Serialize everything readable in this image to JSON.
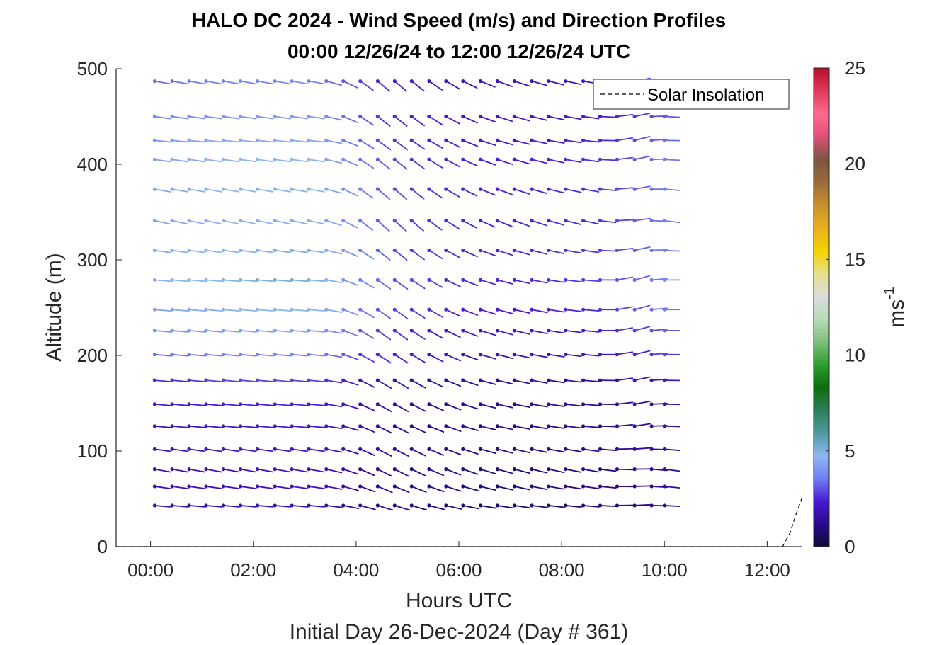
{
  "chart_data": {
    "type": "wind-barb-profile",
    "title": "HALO DC 2024 - Wind Speed (m/s) and Direction Profiles",
    "subtitle": "00:00 12/26/24 to 12:00 12/26/24  UTC",
    "xlabel": "Hours UTC",
    "xlabel2": "Initial Day 26-Dec-2024 (Day # 361)",
    "ylabel": "Altitude (m)",
    "xlim": [
      -0.67,
      12.67
    ],
    "ylim": [
      0,
      500
    ],
    "x_ticks": [
      0,
      2,
      4,
      6,
      8,
      10,
      12
    ],
    "x_tick_labels": [
      "00:00",
      "02:00",
      "04:00",
      "06:00",
      "08:00",
      "10:00",
      "12:00"
    ],
    "y_ticks": [
      0,
      100,
      200,
      300,
      400,
      500
    ],
    "y_tick_labels": [
      "0",
      "100",
      "200",
      "300",
      "400",
      "500"
    ],
    "grid": false,
    "legend": {
      "position": "top-right",
      "entries": [
        "Solar Insolation"
      ]
    },
    "colorbar": {
      "label": "ms",
      "label_exponent": "-1",
      "range": [
        0,
        25
      ],
      "ticks": [
        0,
        5,
        10,
        15,
        20,
        25
      ],
      "tick_labels": [
        "0",
        "5",
        "10",
        "15",
        "20",
        "25"
      ],
      "colors": [
        "#0b0b3a",
        "#2a0a8a",
        "#4a1ad6",
        "#6f7ff0",
        "#8fb6f2",
        "#4f9aa0",
        "#2e7e5a",
        "#0d6e0d",
        "#2e9e2e",
        "#7fc07f",
        "#b8dcb8",
        "#dcdcdc",
        "#e6e08a",
        "#f3d200",
        "#eab020",
        "#c8902c",
        "#9a6a3a",
        "#7a5540",
        "#e0507a",
        "#ff6a90",
        "#e03a5a",
        "#b8102a"
      ]
    },
    "series": [
      {
        "name": "Solar Insolation",
        "style": "dashed",
        "x": [
          -0.67,
          12.3,
          12.45,
          12.55,
          12.67
        ],
        "y": [
          0,
          0,
          15,
          32,
          50
        ]
      }
    ],
    "times": [
      0.08,
      0.42,
      0.75,
      1.08,
      1.42,
      1.75,
      2.08,
      2.42,
      2.75,
      3.08,
      3.42,
      3.75,
      4.08,
      4.42,
      4.75,
      5.08,
      5.42,
      5.75,
      6.08,
      6.42,
      6.75,
      7.08,
      7.42,
      7.75,
      8.08,
      8.42,
      8.75,
      9.08,
      9.42,
      9.75,
      10.0
    ],
    "altitudes": [
      43,
      63,
      81,
      102,
      126,
      149,
      174,
      201,
      226,
      248,
      279,
      310,
      341,
      374,
      405,
      425,
      450,
      487
    ],
    "altitude_speed_profile": [
      1.6,
      1.7,
      1.8,
      1.9,
      2.0,
      2.2,
      2.6,
      3.4,
      3.9,
      4.3,
      4.6,
      4.5,
      4.4,
      4.4,
      4.3,
      4.1,
      3.8,
      3.4
    ],
    "time_speed_profile": [
      1.0,
      1.02,
      1.04,
      1.06,
      1.08,
      1.1,
      1.1,
      1.12,
      1.12,
      1.1,
      1.0,
      0.9,
      0.8,
      0.72,
      0.66,
      0.62,
      0.6,
      0.58,
      0.56,
      0.55,
      0.55,
      0.55,
      0.56,
      0.57,
      0.58,
      0.6,
      0.62,
      0.66,
      0.72,
      0.78,
      0.82
    ],
    "altitude_direction_deg": [
      275,
      278,
      280,
      278,
      275,
      275,
      275,
      275,
      275,
      275,
      275,
      278,
      282,
      280,
      278,
      276,
      278,
      280
    ],
    "time_direction_shift_deg": [
      0,
      0,
      0,
      0,
      0,
      0,
      0,
      0,
      0,
      0,
      5,
      15,
      25,
      30,
      30,
      28,
      24,
      20,
      16,
      12,
      10,
      8,
      6,
      4,
      2,
      0,
      -5,
      -15,
      -20,
      -10,
      -5
    ]
  }
}
